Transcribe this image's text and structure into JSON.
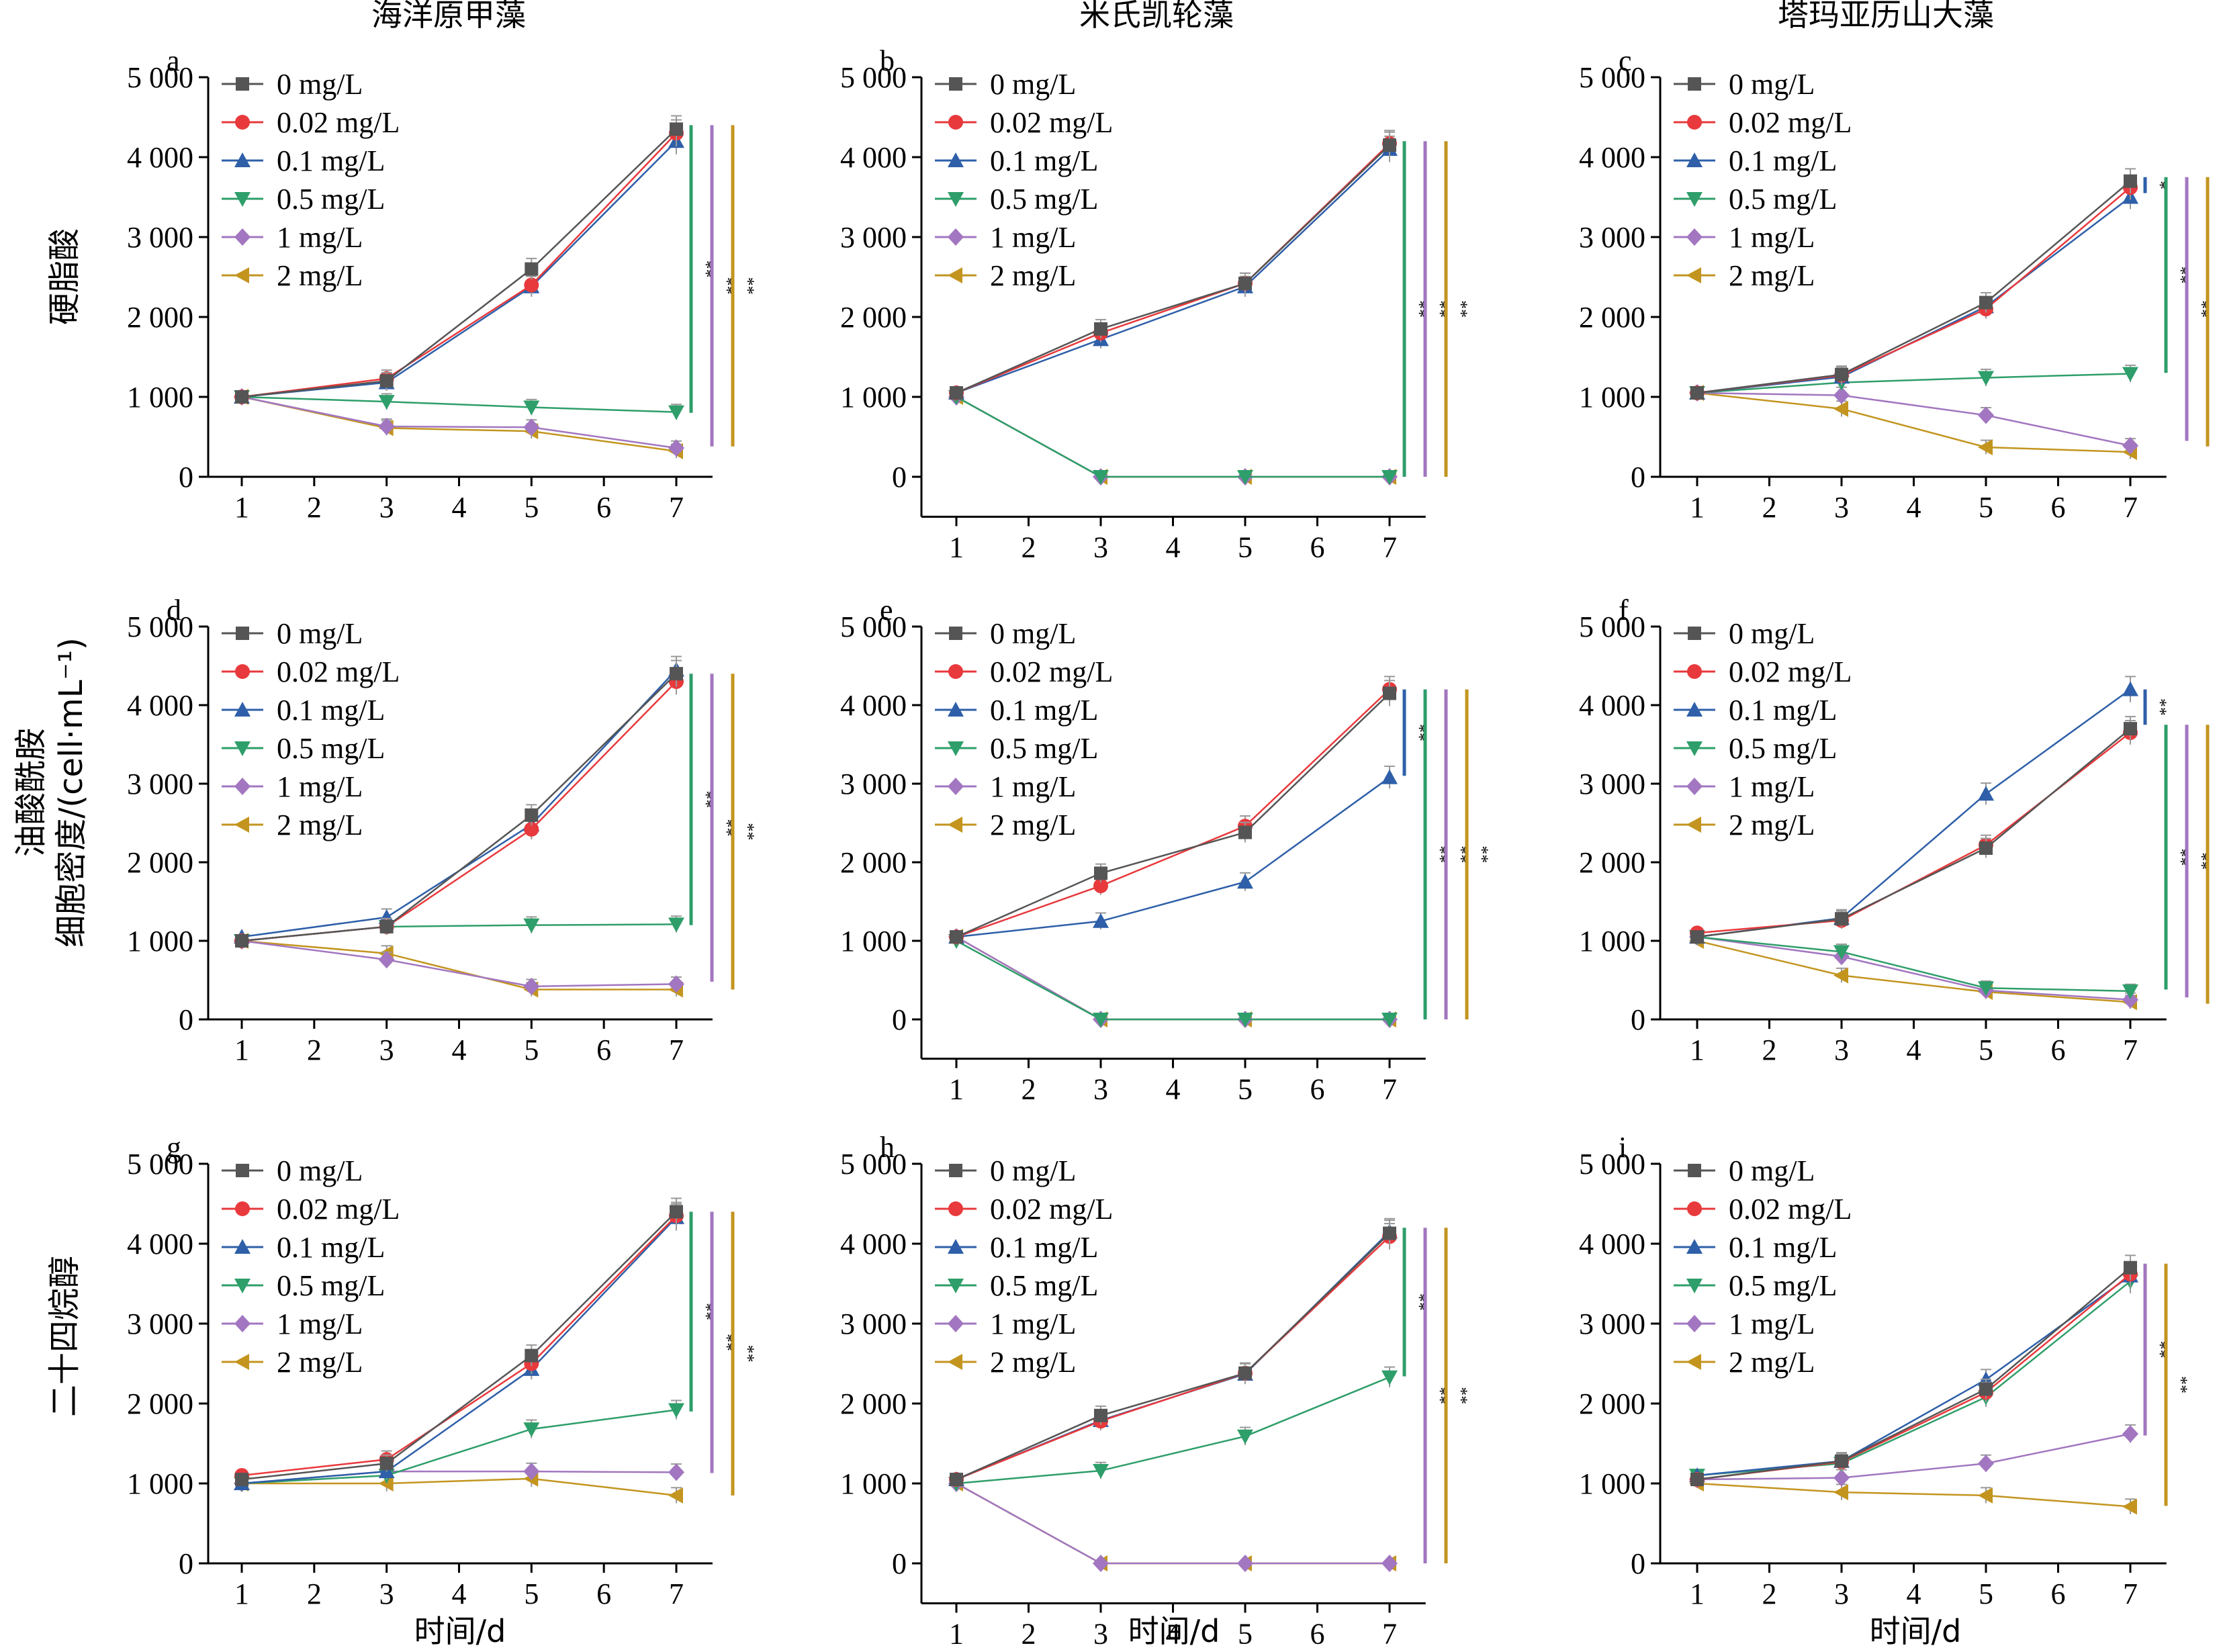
{
  "figure": {
    "col_titles": [
      "海洋原甲藻",
      "米氏凯轮藻",
      "塔玛亚历山大藻"
    ],
    "row_labels": [
      "硬脂酸",
      "油酸酰胺",
      "二十四烷醇"
    ],
    "ylabel": "细胞密度/(cell·mL⁻¹)",
    "xlabel": "时间/d"
  },
  "legend": [
    "0 mg/L",
    "0.02 mg/L",
    "0.1 mg/L",
    "0.5 mg/L",
    "1 mg/L",
    "2 mg/L"
  ],
  "series_colors": [
    "#555555",
    "#e8393c",
    "#2e5fa8",
    "#2e9e6a",
    "#a276c0",
    "#c3951f"
  ],
  "series_markers": [
    "square",
    "circle",
    "triangle-up",
    "triangle-down",
    "diamond",
    "triangle-left"
  ],
  "chart_data": [
    {
      "panel": "a",
      "type": "line",
      "x": [
        1,
        3,
        5,
        7
      ],
      "xlim": [
        0.5,
        7.5
      ],
      "ylim": [
        0,
        5000
      ],
      "xticks": [
        1,
        2,
        3,
        4,
        5,
        6,
        7
      ],
      "yticks": [
        "0",
        "1 000",
        "2 000",
        "3 000",
        "4 000",
        "5 000"
      ],
      "series": [
        {
          "name": "0 mg/L",
          "values": [
            1000,
            1200,
            2600,
            4350
          ]
        },
        {
          "name": "0.02 mg/L",
          "values": [
            1000,
            1230,
            2400,
            4300
          ]
        },
        {
          "name": "0.1 mg/L",
          "values": [
            1000,
            1180,
            2380,
            4200
          ]
        },
        {
          "name": "0.5 mg/L",
          "values": [
            1000,
            940,
            870,
            810
          ]
        },
        {
          "name": "1 mg/L",
          "values": [
            1000,
            630,
            620,
            360
          ]
        },
        {
          "name": "2 mg/L",
          "values": [
            1000,
            610,
            570,
            320
          ]
        }
      ],
      "sig": [
        {
          "color": "#2e9e6a",
          "from": 800,
          "to": 4400,
          "label": "**"
        },
        {
          "color": "#a276c0",
          "from": 380,
          "to": 4400,
          "label": "**"
        },
        {
          "color": "#c3951f",
          "from": 380,
          "to": 4400,
          "label": "**"
        }
      ]
    },
    {
      "panel": "b",
      "type": "line",
      "x": [
        1,
        3,
        5,
        7
      ],
      "xlim": [
        0.5,
        7.5
      ],
      "ylim": [
        -500,
        5000
      ],
      "xticks": [
        1,
        2,
        3,
        4,
        5,
        6,
        7
      ],
      "yticks": [
        "0",
        "1 000",
        "2 000",
        "3 000",
        "4 000",
        "5 000"
      ],
      "series": [
        {
          "name": "0 mg/L",
          "values": [
            1050,
            1850,
            2420,
            4150
          ]
        },
        {
          "name": "0.02 mg/L",
          "values": [
            1050,
            1800,
            2420,
            4170
          ]
        },
        {
          "name": "0.1 mg/L",
          "values": [
            1050,
            1720,
            2380,
            4100
          ]
        },
        {
          "name": "0.5 mg/L",
          "values": [
            1000,
            0,
            0,
            0
          ]
        },
        {
          "name": "1 mg/L",
          "values": [
            1000,
            0,
            0,
            0
          ]
        },
        {
          "name": "2 mg/L",
          "values": [
            1000,
            0,
            0,
            0
          ]
        }
      ],
      "sig": [
        {
          "color": "#2e9e6a",
          "from": 0,
          "to": 4200,
          "label": "**"
        },
        {
          "color": "#a276c0",
          "from": 0,
          "to": 4200,
          "label": "**"
        },
        {
          "color": "#c3951f",
          "from": 0,
          "to": 4200,
          "label": "**"
        }
      ]
    },
    {
      "panel": "c",
      "type": "line",
      "x": [
        1,
        3,
        5,
        7
      ],
      "xlim": [
        0.5,
        7.5
      ],
      "ylim": [
        0,
        5000
      ],
      "xticks": [
        1,
        2,
        3,
        4,
        5,
        6,
        7
      ],
      "yticks": [
        "0",
        "1 000",
        "2 000",
        "3 000",
        "4 000",
        "5 000"
      ],
      "series": [
        {
          "name": "0 mg/L",
          "values": [
            1050,
            1280,
            2180,
            3700
          ]
        },
        {
          "name": "0.02 mg/L",
          "values": [
            1050,
            1270,
            2100,
            3620
          ]
        },
        {
          "name": "0.1 mg/L",
          "values": [
            1050,
            1250,
            2130,
            3500
          ]
        },
        {
          "name": "0.5 mg/L",
          "values": [
            1050,
            1180,
            1240,
            1290
          ]
        },
        {
          "name": "1 mg/L",
          "values": [
            1050,
            1020,
            770,
            390
          ]
        },
        {
          "name": "2 mg/L",
          "values": [
            1050,
            850,
            370,
            310
          ]
        }
      ],
      "sig": [
        {
          "color": "#2e5fa8",
          "from": 3550,
          "to": 3750,
          "label": "*"
        },
        {
          "color": "#2e9e6a",
          "from": 1300,
          "to": 3750,
          "label": "**"
        },
        {
          "color": "#a276c0",
          "from": 450,
          "to": 3750,
          "label": "**"
        },
        {
          "color": "#c3951f",
          "from": 380,
          "to": 3750,
          "label": "**"
        }
      ]
    },
    {
      "panel": "d",
      "type": "line",
      "x": [
        1,
        3,
        5,
        7
      ],
      "xlim": [
        0.5,
        7.5
      ],
      "ylim": [
        0,
        5000
      ],
      "xticks": [
        1,
        2,
        3,
        4,
        5,
        6,
        7
      ],
      "yticks": [
        "0",
        "1 000",
        "2 000",
        "3 000",
        "4 000",
        "5 000"
      ],
      "series": [
        {
          "name": "0 mg/L",
          "values": [
            1000,
            1180,
            2600,
            4400
          ]
        },
        {
          "name": "0.02 mg/L",
          "values": [
            1000,
            1180,
            2420,
            4300
          ]
        },
        {
          "name": "0.1 mg/L",
          "values": [
            1050,
            1300,
            2480,
            4450
          ]
        },
        {
          "name": "0.5 mg/L",
          "values": [
            1000,
            1180,
            1200,
            1210
          ]
        },
        {
          "name": "1 mg/L",
          "values": [
            1000,
            760,
            420,
            450
          ]
        },
        {
          "name": "2 mg/L",
          "values": [
            1000,
            840,
            380,
            380
          ]
        }
      ],
      "sig": [
        {
          "color": "#2e9e6a",
          "from": 1200,
          "to": 4400,
          "label": "**"
        },
        {
          "color": "#a276c0",
          "from": 480,
          "to": 4400,
          "label": "**"
        },
        {
          "color": "#c3951f",
          "from": 380,
          "to": 4400,
          "label": "**"
        }
      ]
    },
    {
      "panel": "e",
      "type": "line",
      "x": [
        1,
        3,
        5,
        7
      ],
      "xlim": [
        0.5,
        7.5
      ],
      "ylim": [
        -500,
        5000
      ],
      "xticks": [
        1,
        2,
        3,
        4,
        5,
        6,
        7
      ],
      "yticks": [
        "0",
        "1 000",
        "2 000",
        "3 000",
        "4 000",
        "5 000"
      ],
      "series": [
        {
          "name": "0 mg/L",
          "values": [
            1050,
            1860,
            2380,
            4150
          ]
        },
        {
          "name": "0.02 mg/L",
          "values": [
            1050,
            1700,
            2460,
            4200
          ]
        },
        {
          "name": "0.1 mg/L",
          "values": [
            1050,
            1250,
            1750,
            3080
          ]
        },
        {
          "name": "0.5 mg/L",
          "values": [
            1000,
            0,
            0,
            0
          ]
        },
        {
          "name": "1 mg/L",
          "values": [
            1050,
            0,
            0,
            0
          ]
        },
        {
          "name": "2 mg/L",
          "values": [
            1050,
            0,
            0,
            0
          ]
        }
      ],
      "sig": [
        {
          "color": "#2e5fa8",
          "from": 3100,
          "to": 4200,
          "label": "**"
        },
        {
          "color": "#2e9e6a",
          "from": 0,
          "to": 4200,
          "label": "**"
        },
        {
          "color": "#a276c0",
          "from": 0,
          "to": 4200,
          "label": "**"
        },
        {
          "color": "#c3951f",
          "from": 0,
          "to": 4200,
          "label": "**"
        }
      ]
    },
    {
      "panel": "f",
      "type": "line",
      "x": [
        1,
        3,
        5,
        7
      ],
      "xlim": [
        0.5,
        7.5
      ],
      "ylim": [
        0,
        5000
      ],
      "xticks": [
        1,
        2,
        3,
        4,
        5,
        6,
        7
      ],
      "yticks": [
        "0",
        "1 000",
        "2 000",
        "3 000",
        "4 000",
        "5 000"
      ],
      "series": [
        {
          "name": "0 mg/L",
          "values": [
            1050,
            1280,
            2180,
            3700
          ]
        },
        {
          "name": "0.02 mg/L",
          "values": [
            1100,
            1260,
            2220,
            3650
          ]
        },
        {
          "name": "0.1 mg/L",
          "values": [
            1050,
            1290,
            2870,
            4200
          ]
        },
        {
          "name": "0.5 mg/L",
          "values": [
            1050,
            860,
            400,
            360
          ]
        },
        {
          "name": "1 mg/L",
          "values": [
            1050,
            800,
            370,
            250
          ]
        },
        {
          "name": "2 mg/L",
          "values": [
            1000,
            560,
            350,
            220
          ]
        }
      ],
      "sig": [
        {
          "color": "#2e5fa8",
          "from": 3750,
          "to": 4200,
          "label": "**"
        },
        {
          "color": "#2e9e6a",
          "from": 380,
          "to": 3750,
          "label": "**"
        },
        {
          "color": "#a276c0",
          "from": 280,
          "to": 3750,
          "label": "**"
        },
        {
          "color": "#c3951f",
          "from": 200,
          "to": 3750,
          "label": "**"
        }
      ]
    },
    {
      "panel": "g",
      "type": "line",
      "x": [
        1,
        3,
        5,
        7
      ],
      "xlim": [
        0.5,
        7.5
      ],
      "ylim": [
        0,
        5000
      ],
      "xticks": [
        1,
        2,
        3,
        4,
        5,
        6,
        7
      ],
      "yticks": [
        "0",
        "1 000",
        "2 000",
        "3 000",
        "4 000",
        "5 000"
      ],
      "series": [
        {
          "name": "0 mg/L",
          "values": [
            1050,
            1250,
            2600,
            4400
          ]
        },
        {
          "name": "0.02 mg/L",
          "values": [
            1100,
            1300,
            2500,
            4350
          ]
        },
        {
          "name": "0.1 mg/L",
          "values": [
            1000,
            1150,
            2430,
            4330
          ]
        },
        {
          "name": "0.5 mg/L",
          "values": [
            1000,
            1100,
            1680,
            1920
          ]
        },
        {
          "name": "1 mg/L",
          "values": [
            1000,
            1150,
            1150,
            1140
          ]
        },
        {
          "name": "2 mg/L",
          "values": [
            1000,
            1000,
            1060,
            850
          ]
        }
      ],
      "sig": [
        {
          "color": "#2e9e6a",
          "from": 1900,
          "to": 4400,
          "label": "**"
        },
        {
          "color": "#a276c0",
          "from": 1130,
          "to": 4400,
          "label": "**"
        },
        {
          "color": "#c3951f",
          "from": 850,
          "to": 4400,
          "label": "**"
        }
      ]
    },
    {
      "panel": "h",
      "type": "line",
      "x": [
        1,
        3,
        5,
        7
      ],
      "xlim": [
        0.5,
        7.5
      ],
      "ylim": [
        -500,
        5000
      ],
      "xticks": [
        1,
        2,
        3,
        4,
        5,
        6,
        7
      ],
      "yticks": [
        "0",
        "1 000",
        "2 000",
        "3 000",
        "4 000",
        "5 000"
      ],
      "series": [
        {
          "name": "0 mg/L",
          "values": [
            1050,
            1850,
            2380,
            4130
          ]
        },
        {
          "name": "0.02 mg/L",
          "values": [
            1050,
            1780,
            2380,
            4090
          ]
        },
        {
          "name": "0.1 mg/L",
          "values": [
            1050,
            1790,
            2370,
            4150
          ]
        },
        {
          "name": "0.5 mg/L",
          "values": [
            1000,
            1160,
            1590,
            2330
          ]
        },
        {
          "name": "1 mg/L",
          "values": [
            1000,
            0,
            0,
            0
          ]
        },
        {
          "name": "2 mg/L",
          "values": [
            1000,
            0,
            0,
            0
          ]
        }
      ],
      "sig": [
        {
          "color": "#2e9e6a",
          "from": 2340,
          "to": 4200,
          "label": "**"
        },
        {
          "color": "#a276c0",
          "from": 0,
          "to": 4200,
          "label": "**"
        },
        {
          "color": "#c3951f",
          "from": 0,
          "to": 4200,
          "label": "**"
        }
      ]
    },
    {
      "panel": "i",
      "type": "line",
      "x": [
        1,
        3,
        5,
        7
      ],
      "xlim": [
        0.5,
        7.5
      ],
      "ylim": [
        0,
        5000
      ],
      "xticks": [
        1,
        2,
        3,
        4,
        5,
        6,
        7
      ],
      "yticks": [
        "0",
        "1 000",
        "2 000",
        "3 000",
        "4 000",
        "5 000"
      ],
      "series": [
        {
          "name": "0 mg/L",
          "values": [
            1050,
            1280,
            2180,
            3700
          ]
        },
        {
          "name": "0.02 mg/L",
          "values": [
            1050,
            1270,
            2140,
            3620
          ]
        },
        {
          "name": "0.1 mg/L",
          "values": [
            1100,
            1280,
            2300,
            3600
          ]
        },
        {
          "name": "0.5 mg/L",
          "values": [
            1100,
            1250,
            2080,
            3530
          ]
        },
        {
          "name": "1 mg/L",
          "values": [
            1050,
            1070,
            1250,
            1620
          ]
        },
        {
          "name": "2 mg/L",
          "values": [
            1000,
            890,
            850,
            710
          ]
        }
      ],
      "sig": [
        {
          "color": "#a276c0",
          "from": 1600,
          "to": 3750,
          "label": "**"
        },
        {
          "color": "#c3951f",
          "from": 720,
          "to": 3750,
          "label": "**"
        }
      ]
    }
  ]
}
